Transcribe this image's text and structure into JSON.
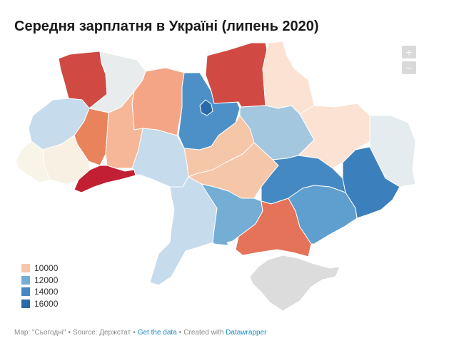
{
  "title": "Середня зарплатня в Україні (липень 2020)",
  "zoom": {
    "in_label": "+",
    "out_label": "−"
  },
  "legend": [
    {
      "label": "10000",
      "color": "#f6c6a9"
    },
    {
      "label": "12000",
      "color": "#74aed4"
    },
    {
      "label": "14000",
      "color": "#4589c3"
    },
    {
      "label": "16000",
      "color": "#2b6aa8"
    }
  ],
  "footer": {
    "map_credit": "Map: \"Сьогодні\"",
    "source": "Source: Держстат",
    "get_data": "Get the data",
    "created_with": "Created with",
    "tool": "Datawrapper"
  },
  "regions": [
    {
      "id": "volyn",
      "color": "#d04a43"
    },
    {
      "id": "rivne",
      "color": "#e9ecec"
    },
    {
      "id": "zhytomyr",
      "color": "#f4a585"
    },
    {
      "id": "kyiv-oblast",
      "color": "#4d90c8"
    },
    {
      "id": "kyiv-city",
      "color": "#2b6aa8"
    },
    {
      "id": "chernihiv",
      "color": "#d04a43"
    },
    {
      "id": "sumy",
      "color": "#fbe2d3"
    },
    {
      "id": "lviv",
      "color": "#c6dbec"
    },
    {
      "id": "ternopil",
      "color": "#e9835c"
    },
    {
      "id": "khmelnytskyi",
      "color": "#f5b797"
    },
    {
      "id": "zakarpattia",
      "color": "#f8f4e8"
    },
    {
      "id": "ivano-frankivsk",
      "color": "#f8f0e2"
    },
    {
      "id": "chernivtsi",
      "color": "#c21f34"
    },
    {
      "id": "vinnytsia",
      "color": "#c6dbec"
    },
    {
      "id": "cherkasy",
      "color": "#f6c6a9"
    },
    {
      "id": "poltava",
      "color": "#a4c7e0"
    },
    {
      "id": "kharkiv",
      "color": "#fbe2d3"
    },
    {
      "id": "luhansk",
      "color": "#e4ecef"
    },
    {
      "id": "kirovohrad",
      "color": "#f6c6a9"
    },
    {
      "id": "dnipropetrovsk",
      "color": "#4589c3"
    },
    {
      "id": "donetsk",
      "color": "#3c7fbd"
    },
    {
      "id": "odesa",
      "color": "#c6dbec"
    },
    {
      "id": "mykolaiv",
      "color": "#74aed4"
    },
    {
      "id": "kherson",
      "color": "#e4735a"
    },
    {
      "id": "zaporizhzhia",
      "color": "#5f9fcf"
    },
    {
      "id": "crimea",
      "color": "#dcdcdc"
    }
  ]
}
